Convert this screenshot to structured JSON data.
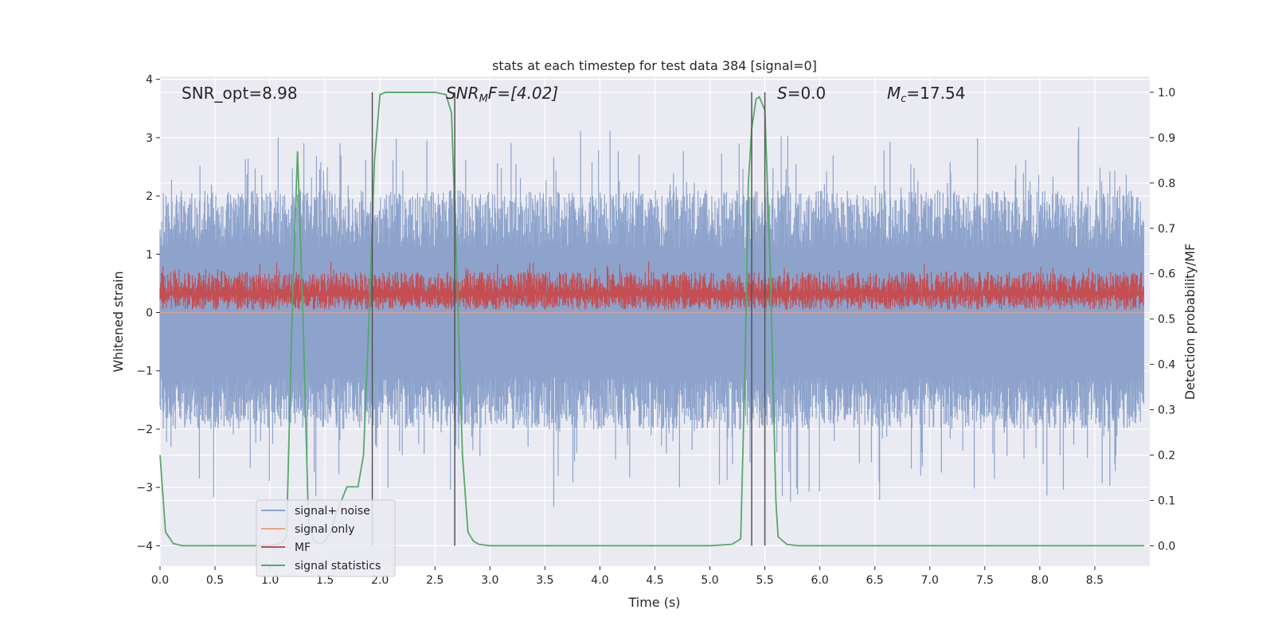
{
  "chart_data": {
    "type": "line",
    "title": "stats at each timestep for test data 384 [signal=0]",
    "xlabel": "Time (s)",
    "ylabel": "Whitened strain",
    "ylabel_right": "Detection probability/MF",
    "xlim": [
      0.0,
      9.0
    ],
    "ylim": [
      -4.35,
      4.05
    ],
    "ylim_right": [
      -0.045,
      1.035
    ],
    "x_ticks": [
      "0.0",
      "0.5",
      "1.0",
      "1.5",
      "2.0",
      "2.5",
      "3.0",
      "3.5",
      "4.0",
      "4.5",
      "5.0",
      "5.5",
      "6.0",
      "6.5",
      "7.0",
      "7.5",
      "8.0",
      "8.5"
    ],
    "y_ticks": [
      "4",
      "3",
      "2",
      "1",
      "0",
      "−1",
      "−2",
      "−3",
      "−4"
    ],
    "y_tick_values": [
      4,
      3,
      2,
      1,
      0,
      -1,
      -2,
      -3,
      -4
    ],
    "y_right_ticks": [
      "1.0",
      "0.9",
      "0.8",
      "0.7",
      "0.6",
      "0.5",
      "0.4",
      "0.3",
      "0.2",
      "0.1",
      "0.0"
    ],
    "y_right_tick_values": [
      1.0,
      0.9,
      0.8,
      0.7,
      0.6,
      0.5,
      0.4,
      0.3,
      0.2,
      0.1,
      0.0
    ],
    "annotations": {
      "snr_opt": "SNR_opt=8.98",
      "snr_mf_main": "SNR",
      "snr_mf_sub": "M",
      "snr_mf_rest": "F=[4.02]",
      "s_main": "S",
      "s_rest": "=0.0",
      "mc_main": "M",
      "mc_sub": "c",
      "mc_rest": "=17.54"
    },
    "vertical_lines_x": [
      1.93,
      2.68,
      5.38,
      5.5
    ],
    "series": [
      {
        "name": "signal+ noise",
        "color": "#8da3cc",
        "axis": "left",
        "description": "noise band amplitude ~ ±2, spikes to ~±3.6"
      },
      {
        "name": "signal only",
        "color": "#f0a283",
        "axis": "left",
        "values_constant": 0.0
      },
      {
        "name": "MF",
        "color": "#c44e52",
        "axis": "left",
        "description": "band between ~0.05 and ~0.9"
      },
      {
        "name": "signal statistics",
        "color": "#55a868",
        "axis": "right",
        "x": [
          0.0,
          0.05,
          0.12,
          0.2,
          0.5,
          1.0,
          1.1,
          1.15,
          1.2,
          1.25,
          1.3,
          1.35,
          1.4,
          1.45,
          1.5,
          1.55,
          1.6,
          1.7,
          1.8,
          1.85,
          1.9,
          1.95,
          2.0,
          2.05,
          2.1,
          2.3,
          2.5,
          2.6,
          2.65,
          2.7,
          2.75,
          2.8,
          2.85,
          2.9,
          3.0,
          4.0,
          5.0,
          5.2,
          5.28,
          5.32,
          5.35,
          5.38,
          5.42,
          5.45,
          5.5,
          5.55,
          5.6,
          5.62,
          5.7,
          5.8,
          6.0,
          7.0,
          8.0,
          8.95
        ],
        "y": [
          0.2,
          0.03,
          0.005,
          0.0,
          0.0,
          0.0,
          0.005,
          0.02,
          0.5,
          0.87,
          0.5,
          0.05,
          0.01,
          0.005,
          0.01,
          0.03,
          0.07,
          0.13,
          0.13,
          0.2,
          0.5,
          0.85,
          0.995,
          1.0,
          1.0,
          1.0,
          1.0,
          0.995,
          0.955,
          0.6,
          0.2,
          0.03,
          0.01,
          0.003,
          0.0,
          0.0,
          0.0,
          0.003,
          0.015,
          0.4,
          0.8,
          0.92,
          0.985,
          0.99,
          0.96,
          0.6,
          0.1,
          0.02,
          0.003,
          0.0,
          0.0,
          0.0,
          0.0,
          0.0
        ]
      }
    ],
    "legend_position": "lower-left"
  }
}
